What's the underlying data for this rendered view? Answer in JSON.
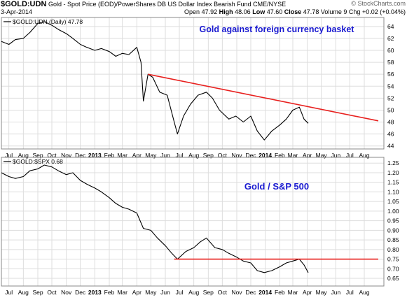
{
  "header": {
    "symbol": "$GOLD:UDN",
    "description": "Gold - Spot Price (EOD)/PowerShares DB US Dollar Index Bearish Fund  CME/NYSE",
    "date": "3-Apr-2014",
    "copyright": "© StockCharts.com",
    "quote_open_label": "Open",
    "quote_open": "47.92",
    "quote_high_label": "High",
    "quote_high": "48.06",
    "quote_low_label": "Low",
    "quote_low": "47.60",
    "quote_close_label": "Close",
    "quote_close": "47.78",
    "quote_volume_label": "Volume",
    "quote_volume": "9",
    "quote_chg_label": "Chg",
    "quote_chg": "+0.02 (+0.04%)"
  },
  "colors": {
    "price_line": "#000000",
    "trend_line": "#e8201e",
    "annotation_text": "#1a1ad0",
    "grid": "#dddddd",
    "frame": "#888888"
  },
  "chart_data": [
    {
      "type": "line",
      "legend": "$GOLD:UDN (Daily) 47.78",
      "title": "Gold against foreign currency basket",
      "x_tick_labels": [
        "Jul",
        "Aug",
        "Sep",
        "Oct",
        "Nov",
        "Dec",
        "2013",
        "Feb",
        "Mar",
        "Apr",
        "May",
        "Jun",
        "Jul",
        "Aug",
        "Sep",
        "Oct",
        "Nov",
        "Dec",
        "2014",
        "Feb",
        "Mar",
        "Apr",
        "May",
        "Jun",
        "Jul",
        "Aug"
      ],
      "y_tick_labels": [
        "44",
        "46",
        "48",
        "50",
        "52",
        "54",
        "56",
        "58",
        "60",
        "62",
        "64"
      ],
      "ylim": [
        43.5,
        65.5
      ],
      "series": [
        {
          "x": [
            "2012-06-15",
            "2012-07-01",
            "2012-07-15",
            "2012-08-01",
            "2012-08-15",
            "2012-09-01",
            "2012-09-15",
            "2012-10-01",
            "2012-10-15",
            "2012-11-01",
            "2012-11-15",
            "2012-12-01",
            "2012-12-15",
            "2013-01-01",
            "2013-01-15",
            "2013-02-01",
            "2013-02-15",
            "2013-03-01",
            "2013-03-15",
            "2013-04-01",
            "2013-04-10",
            "2013-04-15",
            "2013-04-25",
            "2013-05-05",
            "2013-05-20",
            "2013-06-05",
            "2013-06-20",
            "2013-06-27",
            "2013-07-10",
            "2013-07-25",
            "2013-08-10",
            "2013-08-28",
            "2013-09-10",
            "2013-09-25",
            "2013-10-15",
            "2013-10-30",
            "2013-11-15",
            "2013-12-01",
            "2013-12-15",
            "2013-12-30",
            "2014-01-15",
            "2014-02-01",
            "2014-02-15",
            "2014-03-01",
            "2014-03-15",
            "2014-03-25",
            "2014-04-03"
          ],
          "y": [
            61.5,
            61.0,
            61.8,
            62.0,
            63.0,
            64.5,
            64.8,
            64.2,
            63.5,
            62.8,
            62.0,
            61.0,
            60.5,
            60.0,
            60.3,
            59.8,
            59.0,
            59.5,
            59.3,
            60.5,
            58.0,
            51.5,
            56.0,
            55.5,
            53.0,
            52.5,
            48.0,
            46.0,
            49.0,
            51.0,
            52.5,
            53.0,
            52.0,
            50.0,
            48.5,
            49.0,
            48.0,
            49.0,
            46.5,
            45.0,
            46.5,
            47.5,
            48.5,
            50.0,
            50.5,
            48.5,
            47.8
          ]
        }
      ],
      "trend_line": {
        "x": [
          "2013-04-25",
          "2014-08-31"
        ],
        "y": [
          56.0,
          48.2
        ]
      }
    },
    {
      "type": "line",
      "legend": "$GOLD:$SPX 0.68",
      "title": "Gold / S&P 500",
      "x_tick_labels": [
        "Jul",
        "Aug",
        "Sep",
        "Oct",
        "Nov",
        "Dec",
        "2013",
        "Feb",
        "Mar",
        "Apr",
        "May",
        "Jun",
        "Jul",
        "Aug",
        "Sep",
        "Oct",
        "Nov",
        "Dec",
        "2014",
        "Feb",
        "Mar",
        "Apr",
        "May",
        "Jun",
        "Jul",
        "Aug"
      ],
      "y_tick_labels": [
        "0.65",
        "0.70",
        "0.75",
        "0.80",
        "0.85",
        "0.90",
        "0.95",
        "1.00",
        "1.05",
        "1.10",
        "1.15",
        "1.20",
        "1.25"
      ],
      "ylim": [
        0.61,
        1.28
      ],
      "series": [
        {
          "x": [
            "2012-06-15",
            "2012-07-01",
            "2012-07-15",
            "2012-08-01",
            "2012-08-15",
            "2012-09-01",
            "2012-09-15",
            "2012-10-01",
            "2012-10-15",
            "2012-11-01",
            "2012-11-15",
            "2012-12-01",
            "2012-12-15",
            "2013-01-01",
            "2013-01-15",
            "2013-02-01",
            "2013-02-15",
            "2013-03-01",
            "2013-03-15",
            "2013-04-01",
            "2013-04-15",
            "2013-05-01",
            "2013-05-15",
            "2013-06-01",
            "2013-06-15",
            "2013-06-27",
            "2013-07-15",
            "2013-08-01",
            "2013-08-15",
            "2013-08-28",
            "2013-09-15",
            "2013-10-01",
            "2013-10-15",
            "2013-11-01",
            "2013-11-15",
            "2013-12-01",
            "2013-12-15",
            "2013-12-30",
            "2014-01-15",
            "2014-02-01",
            "2014-02-15",
            "2014-03-01",
            "2014-03-15",
            "2014-03-25",
            "2014-04-03"
          ],
          "y": [
            1.2,
            1.18,
            1.17,
            1.18,
            1.21,
            1.22,
            1.24,
            1.23,
            1.21,
            1.19,
            1.2,
            1.16,
            1.14,
            1.12,
            1.1,
            1.07,
            1.04,
            1.02,
            1.01,
            0.99,
            0.91,
            0.9,
            0.86,
            0.82,
            0.78,
            0.75,
            0.79,
            0.81,
            0.84,
            0.86,
            0.81,
            0.8,
            0.78,
            0.76,
            0.74,
            0.73,
            0.69,
            0.68,
            0.69,
            0.71,
            0.73,
            0.74,
            0.75,
            0.72,
            0.68
          ]
        }
      ],
      "trend_line": {
        "x": [
          "2013-06-20",
          "2014-08-31"
        ],
        "y": [
          0.75,
          0.75
        ]
      }
    }
  ]
}
